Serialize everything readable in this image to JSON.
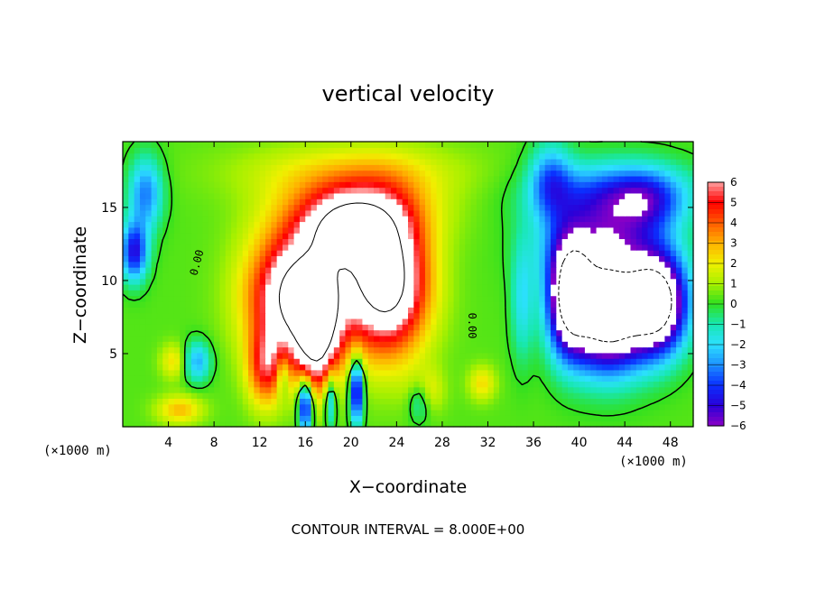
{
  "chart_data": {
    "type": "heatmap",
    "title": "vertical velocity",
    "xlabel": "X−coordinate",
    "ylabel": "Z−coordinate",
    "x_unit_left": "(×1000 m)",
    "x_unit_right": "(×1000 m)",
    "footer": "CONTOUR INTERVAL = 8.000E+00",
    "xlim": [
      0,
      50
    ],
    "ylim": [
      0,
      19.5
    ],
    "xticks": [
      4,
      8,
      12,
      16,
      20,
      24,
      28,
      32,
      36,
      40,
      44,
      48
    ],
    "xtick_labels": [
      "4",
      "8",
      "12",
      "16",
      "20",
      "24",
      "28",
      "32",
      "36",
      "40",
      "44",
      "48"
    ],
    "yticks": [
      5,
      10,
      15
    ],
    "ytick_labels": [
      "5",
      "10",
      "15"
    ],
    "colorbar": {
      "min": -6,
      "max": 6,
      "tick_labels": [
        "6",
        "5",
        "4",
        "3",
        "2",
        "1",
        "0",
        "−1",
        "−2",
        "−3",
        "−4",
        "−5",
        "−6"
      ]
    },
    "contour_labels": [
      "0.00",
      "0.00"
    ],
    "updrafts": [
      {
        "x": 15.5,
        "z": 9.0,
        "w": 9,
        "sx": 4.2,
        "sz": 4.3
      },
      {
        "x": 23.2,
        "z": 10.0,
        "w": 9,
        "sx": 3.5,
        "sz": 4.8
      },
      {
        "x": 19.5,
        "z": 13.5,
        "w": 5,
        "sx": 3.5,
        "sz": 2.4
      },
      {
        "x": 17.0,
        "z": 6.0,
        "w": 6,
        "sx": 1.8,
        "sz": 3.5
      },
      {
        "x": 12.5,
        "z": 4.0,
        "w": 4,
        "sx": 1.6,
        "sz": 2.6
      },
      {
        "x": 20.5,
        "z": 14.8,
        "w": 3,
        "sx": 6.5,
        "sz": 2.5
      },
      {
        "x": 20.0,
        "z": 17.5,
        "w": 1.6,
        "sx": 10.0,
        "sz": 2.0
      },
      {
        "x": 31.5,
        "z": 3.0,
        "w": 2,
        "sx": 1.2,
        "sz": 1.2
      },
      {
        "x": 26.5,
        "z": 2.5,
        "w": 2,
        "sx": 1.5,
        "sz": 1.5
      },
      {
        "x": 4.5,
        "z": 4.5,
        "w": 2,
        "sx": 1.2,
        "sz": 1.2
      },
      {
        "x": 5.0,
        "z": 1.2,
        "w": 2.5,
        "sx": 2.0,
        "sz": 1.0
      }
    ],
    "downdrafts": [
      {
        "x": 42.5,
        "z": 7.5,
        "w": -10,
        "sx": 3.5,
        "sz": 3.6
      },
      {
        "x": 47.0,
        "z": 8.5,
        "w": -9,
        "sx": 2.5,
        "sz": 3.3
      },
      {
        "x": 39.0,
        "z": 9.0,
        "w": -7,
        "sx": 1.8,
        "sz": 3.8
      },
      {
        "x": 42.0,
        "z": 12.5,
        "w": -5,
        "sx": 5.0,
        "sz": 3.0
      },
      {
        "x": 43.0,
        "z": 16.0,
        "w": -3.5,
        "sx": 6.5,
        "sz": 2.2
      },
      {
        "x": 37.5,
        "z": 17.0,
        "w": -3,
        "sx": 1.8,
        "sz": 2.5
      },
      {
        "x": 46.0,
        "z": 15.5,
        "w": -2.5,
        "sx": 3.0,
        "sz": 2.0
      },
      {
        "x": 1.0,
        "z": 12.0,
        "w": -5,
        "sx": 1.2,
        "sz": 2.0
      },
      {
        "x": 2.0,
        "z": 16.0,
        "w": -3.5,
        "sx": 1.5,
        "sz": 2.5
      },
      {
        "x": 6.5,
        "z": 4.5,
        "w": -3,
        "sx": 1.2,
        "sz": 1.4
      },
      {
        "x": 16.0,
        "z": 1.5,
        "w": -6,
        "sx": 0.6,
        "sz": 1.8
      },
      {
        "x": 20.5,
        "z": 2.5,
        "w": -6,
        "sx": 0.6,
        "sz": 2.2
      },
      {
        "x": 18.2,
        "z": 2.0,
        "w": -3,
        "sx": 0.5,
        "sz": 2.0
      },
      {
        "x": 14.0,
        "z": 3.5,
        "w": -2,
        "sx": 0.5,
        "sz": 1.5
      },
      {
        "x": 26.0,
        "z": 2.0,
        "w": -2.5,
        "sx": 1.0,
        "sz": 1.5
      },
      {
        "x": 35.0,
        "z": 8.5,
        "w": -2,
        "sx": 1.0,
        "sz": 4.0
      }
    ]
  },
  "colors": {
    "stops": [
      {
        "v": -6,
        "c": "#8a00c6"
      },
      {
        "v": -5,
        "c": "#2a00d8"
      },
      {
        "v": -4,
        "c": "#0a30ff"
      },
      {
        "v": -3,
        "c": "#1c90ff"
      },
      {
        "v": -2,
        "c": "#2ce0ff"
      },
      {
        "v": -1,
        "c": "#18e8b0"
      },
      {
        "v": 0,
        "c": "#30e020"
      },
      {
        "v": 1,
        "c": "#a8f000"
      },
      {
        "v": 2,
        "c": "#f0f000"
      },
      {
        "v": 3,
        "c": "#ffb000"
      },
      {
        "v": 4,
        "c": "#ff5a00"
      },
      {
        "v": 5,
        "c": "#ff0000"
      },
      {
        "v": 6,
        "c": "#ffa0a0"
      }
    ],
    "over": "#ffffff",
    "under": "#ffffff"
  }
}
